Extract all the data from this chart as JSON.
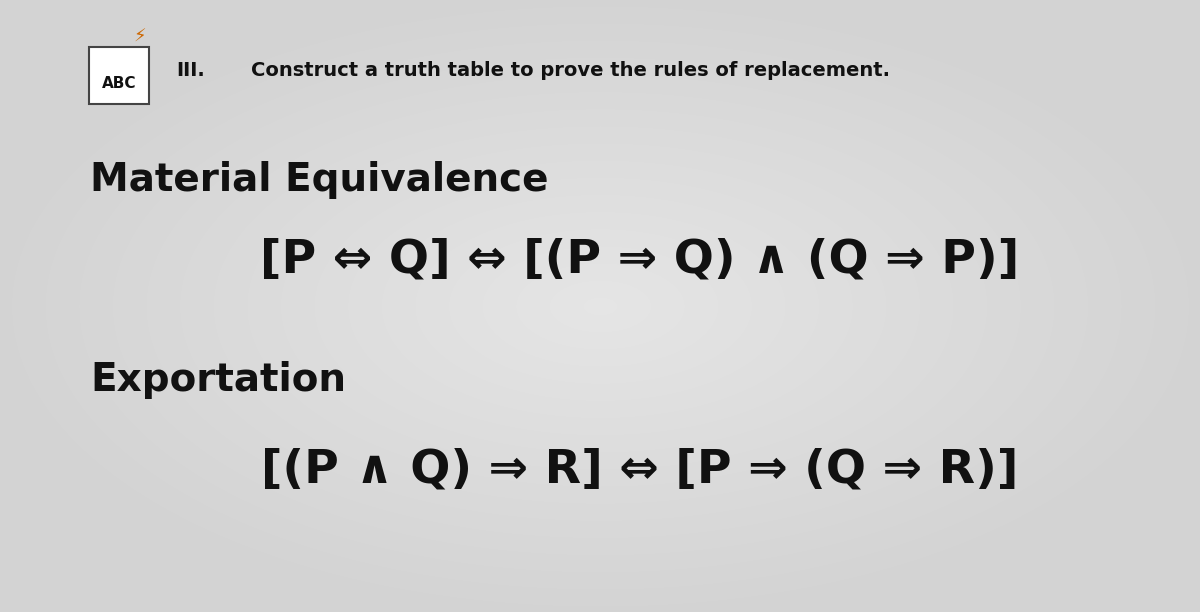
{
  "background_color": "#c8c8c8",
  "background_center_color": "#d8d8d8",
  "title_text": "III.",
  "instruction_text": "Construct a truth table to prove the rules of replacement.",
  "section1_label": "Material Equivalence",
  "section1_formula": "[P ⇔ Q] ⇔ [(P ⇒ Q) ∧ (Q ⇒ P)]",
  "section2_label": "Exportation",
  "section2_formula": "[(P ∧ Q) ⇒ R] ⇔ [P ⇒ (Q ⇒ R)]",
  "abc_label": "ABC",
  "label_fontsize": 28,
  "formula_fontsize": 34,
  "instruction_fontsize": 14,
  "header_fontsize": 14,
  "text_color": "#111111",
  "fig_width": 12.0,
  "fig_height": 6.12,
  "dpi": 100
}
